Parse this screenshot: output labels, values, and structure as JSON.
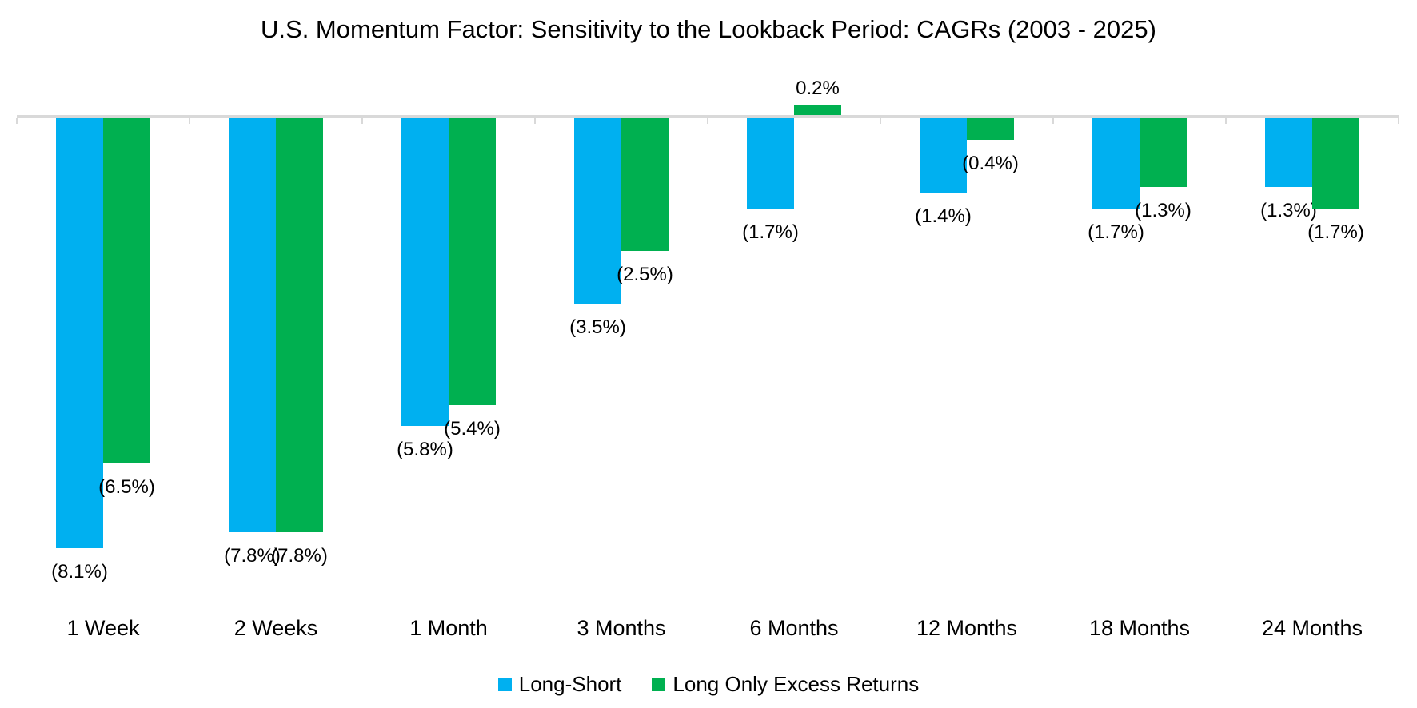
{
  "title": "U.S. Momentum Factor: Sensitivity to the Lookback Period: CAGRs (2003 - 2025)",
  "colors": {
    "long_short": "#00B0F0",
    "long_only_excess": "#00B050",
    "axis": "#D9D9D9",
    "label_text": "#000000",
    "background": "#FFFFFF"
  },
  "legend": {
    "items": [
      {
        "label": "Long-Short",
        "color": "#00B0F0"
      },
      {
        "label": "Long Only Excess Returns",
        "color": "#00B050"
      }
    ]
  },
  "chart_data": {
    "type": "bar",
    "title": "U.S. Momentum Factor: Sensitivity to the Lookback Period: CAGRs (2003 - 2025)",
    "categories": [
      "1 Week",
      "2 Weeks",
      "1 Month",
      "3 Months",
      "6 Months",
      "12 Months",
      "18 Months",
      "24 Months"
    ],
    "series": [
      {
        "name": "Long-Short",
        "color": "#00B0F0",
        "values_pct": [
          -8.1,
          -7.8,
          -5.8,
          -3.5,
          -1.7,
          -1.4,
          -1.7,
          -1.3
        ],
        "data_labels": [
          "(8.1%)",
          "(7.8%)",
          "(5.8%)",
          "(3.5%)",
          "(1.7%)",
          "(1.4%)",
          "(1.7%)",
          "(1.3%)"
        ]
      },
      {
        "name": "Long Only Excess Returns",
        "color": "#00B050",
        "values_pct": [
          -6.5,
          -7.8,
          -5.4,
          -2.5,
          0.2,
          -0.4,
          -1.3,
          -1.7
        ],
        "data_labels": [
          "(6.5%)",
          "(7.8%)",
          "(5.4%)",
          "(2.5%)",
          "0.2%",
          "(0.4%)",
          "(1.3%)",
          "(1.7%)"
        ]
      }
    ],
    "xlabel": "",
    "ylabel": "",
    "ylim": [
      -8.5,
      0.5
    ],
    "grid": false,
    "legend_position": "bottom"
  }
}
